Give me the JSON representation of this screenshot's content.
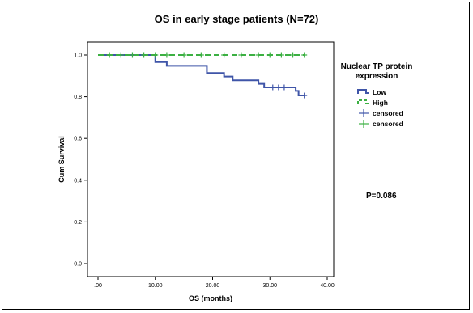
{
  "chart_data": {
    "type": "line",
    "title": "OS in early stage patients (N=72)",
    "xlabel": "OS (months)",
    "ylabel": "Cum Survival",
    "xlim": [
      0,
      40
    ],
    "ylim": [
      0,
      1.0
    ],
    "x_ticks": [
      0,
      10,
      20,
      30,
      40
    ],
    "x_tick_labels": [
      ".00",
      "10.00",
      "20.00",
      "30.00",
      "40.00"
    ],
    "y_ticks": [
      0.0,
      0.2,
      0.4,
      0.6,
      0.8,
      1.0
    ],
    "y_tick_labels": [
      "0.0",
      "0.2",
      "0.4",
      "0.6",
      "0.8",
      "1.0"
    ],
    "grid": false,
    "legend_title": "Nuclear TP protein expression",
    "legend_title_lines": [
      "Nuclear TP protein",
      "expression"
    ],
    "legend_position": "right",
    "legend": [
      {
        "label": "Low",
        "kind": "line",
        "color": "#3f55a8"
      },
      {
        "label": "High",
        "kind": "line",
        "color": "#3cb043",
        "dashed": true
      },
      {
        "label": "censored",
        "kind": "plus",
        "color": "#3f55a8"
      },
      {
        "label": "censored",
        "kind": "plus",
        "color": "#3cb043"
      }
    ],
    "series": [
      {
        "name": "Low",
        "color": "#3f55a8",
        "dashed": false,
        "steps": [
          [
            0,
            1.0
          ],
          [
            10,
            0.966
          ],
          [
            12,
            0.948
          ],
          [
            19,
            0.914
          ],
          [
            22,
            0.897
          ],
          [
            23.5,
            0.879
          ],
          [
            28,
            0.862
          ],
          [
            29,
            0.845
          ],
          [
            34.5,
            0.828
          ],
          [
            35,
            0.806
          ],
          [
            36,
            0.806
          ]
        ],
        "censored": [
          [
            30.5,
            0.845
          ],
          [
            31.5,
            0.845
          ],
          [
            32.5,
            0.845
          ],
          [
            36,
            0.806
          ]
        ]
      },
      {
        "name": "High",
        "color": "#3cb043",
        "dashed": true,
        "steps": [
          [
            0,
            1.0
          ],
          [
            36,
            1.0
          ]
        ],
        "censored": [
          [
            2,
            1.0
          ],
          [
            4,
            1.0
          ],
          [
            6,
            1.0
          ],
          [
            8,
            1.0
          ],
          [
            10,
            1.0
          ],
          [
            12,
            1.0
          ],
          [
            15,
            1.0
          ],
          [
            18,
            1.0
          ],
          [
            22,
            1.0
          ],
          [
            25,
            1.0
          ],
          [
            28,
            1.0
          ],
          [
            30,
            1.0
          ],
          [
            32,
            1.0
          ],
          [
            34,
            1.0
          ],
          [
            36,
            1.0
          ]
        ]
      }
    ],
    "annotations": [
      {
        "text": "P=0.086"
      }
    ]
  }
}
